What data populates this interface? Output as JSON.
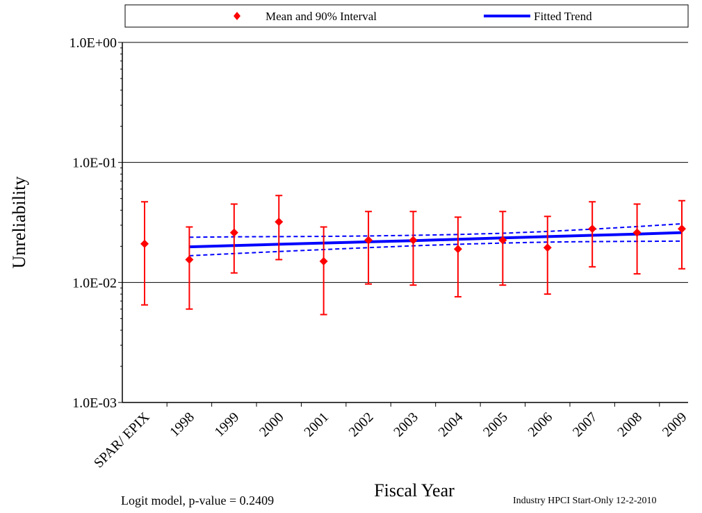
{
  "chart_data": {
    "type": "scatter",
    "xlabel": "Fiscal Year",
    "ylabel": "Unreliability",
    "yscale": "log",
    "ylim": [
      0.001,
      1.0
    ],
    "ytick_labels": [
      "1.0E+00",
      "1.0E-01",
      "1.0E-02",
      "1.0E-03"
    ],
    "ytick_values": [
      1.0,
      0.1,
      0.01,
      0.001
    ],
    "grid": "horizontal major lines",
    "legend_position": "top",
    "categories": [
      "SPAR/ EPIX",
      "1998",
      "1999",
      "2000",
      "2001",
      "2002",
      "2003",
      "2004",
      "2005",
      "2006",
      "2007",
      "2008",
      "2009"
    ],
    "series": [
      {
        "name": "Mean and 90% Interval",
        "color": "#ff0000",
        "marker": "diamond",
        "mean": [
          0.021,
          0.0155,
          0.026,
          0.032,
          0.015,
          0.0225,
          0.0225,
          0.019,
          0.0225,
          0.0195,
          0.028,
          0.026,
          0.028
        ],
        "lower": [
          0.0065,
          0.006,
          0.012,
          0.0155,
          0.0054,
          0.0097,
          0.0095,
          0.0076,
          0.0095,
          0.008,
          0.0135,
          0.0118,
          0.013
        ],
        "upper": [
          0.047,
          0.029,
          0.045,
          0.053,
          0.029,
          0.039,
          0.039,
          0.035,
          0.039,
          0.0355,
          0.047,
          0.045,
          0.048
        ]
      },
      {
        "name": "Fitted Trend",
        "color": "#0000ff",
        "x": [
          "1998",
          "1999",
          "2000",
          "2001",
          "2002",
          "2003",
          "2004",
          "2005",
          "2006",
          "2007",
          "2008",
          "2009"
        ],
        "values": [
          0.0198,
          0.0203,
          0.0208,
          0.0213,
          0.0218,
          0.0223,
          0.0229,
          0.0235,
          0.0241,
          0.0247,
          0.0253,
          0.026
        ],
        "upper": [
          0.0238,
          0.024,
          0.0241,
          0.0242,
          0.0244,
          0.0247,
          0.0251,
          0.0257,
          0.0266,
          0.0278,
          0.0292,
          0.0308
        ],
        "lower": [
          0.0167,
          0.0174,
          0.0181,
          0.0188,
          0.0195,
          0.0202,
          0.0208,
          0.0213,
          0.0217,
          0.0219,
          0.022,
          0.0221
        ]
      }
    ]
  },
  "legend": {
    "mean_label": "Mean and 90% Interval",
    "trend_label": "Fitted Trend"
  },
  "footer": {
    "left_note": "Logit model, p-value = 0.2409",
    "right_note": "Industry HPCI Start-Only 12-2-2010"
  }
}
